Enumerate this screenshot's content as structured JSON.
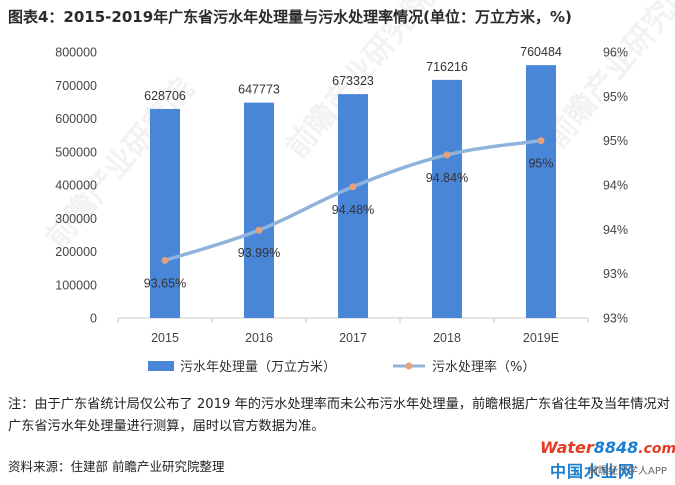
{
  "title": "图表4：2015-2019年广东省污水年处理量与污水处理率情况(单位：万立方米，%)",
  "note": "注：由于广东省统计局仅公布了 2019 年的污水处理率而未公布污水年处理量，前瞻根据广东省往年及当年情况对广东省污水年处理量进行测算，届时以官方数据为准。",
  "source": "资料来源：住建部 前瞻产业研究院整理",
  "watermark": {
    "logo_part1": "Water",
    "logo_part2": "8848",
    "logo_part3": ".com",
    "sub": "中国水业网",
    "sub2": "前瞻经济学人APP",
    "diagonal": "前瞻产业研究院"
  },
  "colors": {
    "bar": "#4a86d8",
    "line": "#8fb4dc",
    "marker": "#e8a07a",
    "grid": "#d9d9d9"
  },
  "chart_data": {
    "type": "bar+line",
    "categories": [
      "2015",
      "2016",
      "2017",
      "2018",
      "2019E"
    ],
    "series": [
      {
        "name": "污水年处理量（万立方米）",
        "type": "bar",
        "axis": "left",
        "values": [
          628706,
          647773,
          673323,
          716216,
          760484
        ],
        "labels": [
          "628706",
          "647773",
          "673323",
          "716216",
          "760484"
        ]
      },
      {
        "name": "污水处理率（%）",
        "type": "line",
        "axis": "right",
        "values": [
          93.65,
          93.99,
          94.48,
          94.84,
          95
        ],
        "labels": [
          "93.65%",
          "93.99%",
          "94.48%",
          "94.84%",
          "95%"
        ]
      }
    ],
    "y_left": {
      "min": 0,
      "max": 800000,
      "ticks": [
        "0",
        "100000",
        "200000",
        "300000",
        "400000",
        "500000",
        "600000",
        "700000",
        "800000"
      ]
    },
    "y_right": {
      "min": 93,
      "max": 96,
      "ticks": [
        "93%",
        "93%",
        "94%",
        "94%",
        "95%",
        "95%",
        "96%"
      ]
    },
    "grid": false,
    "legend_position": "bottom"
  }
}
